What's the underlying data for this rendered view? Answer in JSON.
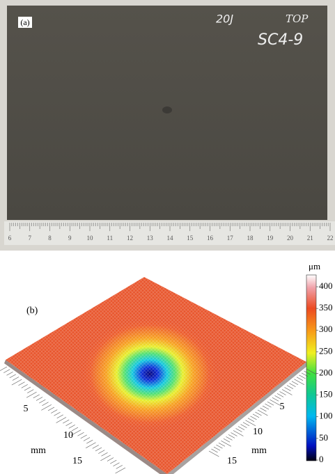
{
  "panel_a": {
    "label": "(a)",
    "annotations": [
      "20J",
      "TOP",
      "SC4-9"
    ],
    "ruler_ticks": [
      6,
      7,
      8,
      9,
      10,
      11,
      12,
      13,
      14,
      15,
      16,
      17,
      18,
      19,
      20,
      21,
      22
    ]
  },
  "panel_b": {
    "label": "(b)",
    "colorbar": {
      "unit": "μm",
      "ticks": [
        0,
        50,
        100,
        150,
        200,
        250,
        300,
        350,
        400
      ]
    },
    "left_axis": {
      "ticks": [
        5,
        10,
        15
      ],
      "label": "mm"
    },
    "right_axis": {
      "ticks": [
        5,
        10,
        15
      ],
      "label": "mm"
    }
  }
}
